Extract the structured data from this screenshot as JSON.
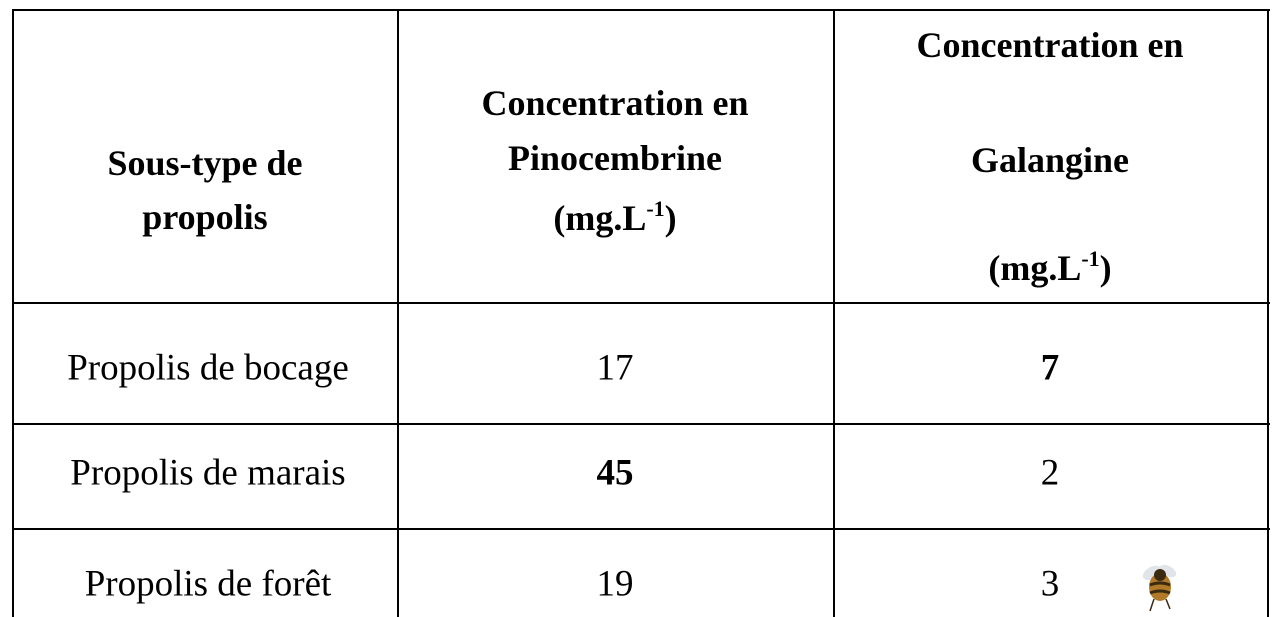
{
  "table": {
    "header": [
      {
        "lines": [
          "Sous-type de",
          "propolis"
        ]
      },
      {
        "lines": [
          "Concentration en",
          "Pinocembrine"
        ],
        "unit": {
          "base": "(mg.L",
          "sup": "-1",
          "end": ")"
        }
      },
      {
        "lines": [
          "Concentration en",
          "Galangine"
        ],
        "unit": {
          "base": "(mg.L",
          "sup": "-1",
          "end": ")"
        }
      }
    ],
    "rows": [
      [
        "Propolis de bocage",
        17,
        7
      ],
      [
        "Propolis de marais",
        45,
        2
      ],
      [
        "Propolis de forêt",
        19,
        3
      ]
    ]
  }
}
